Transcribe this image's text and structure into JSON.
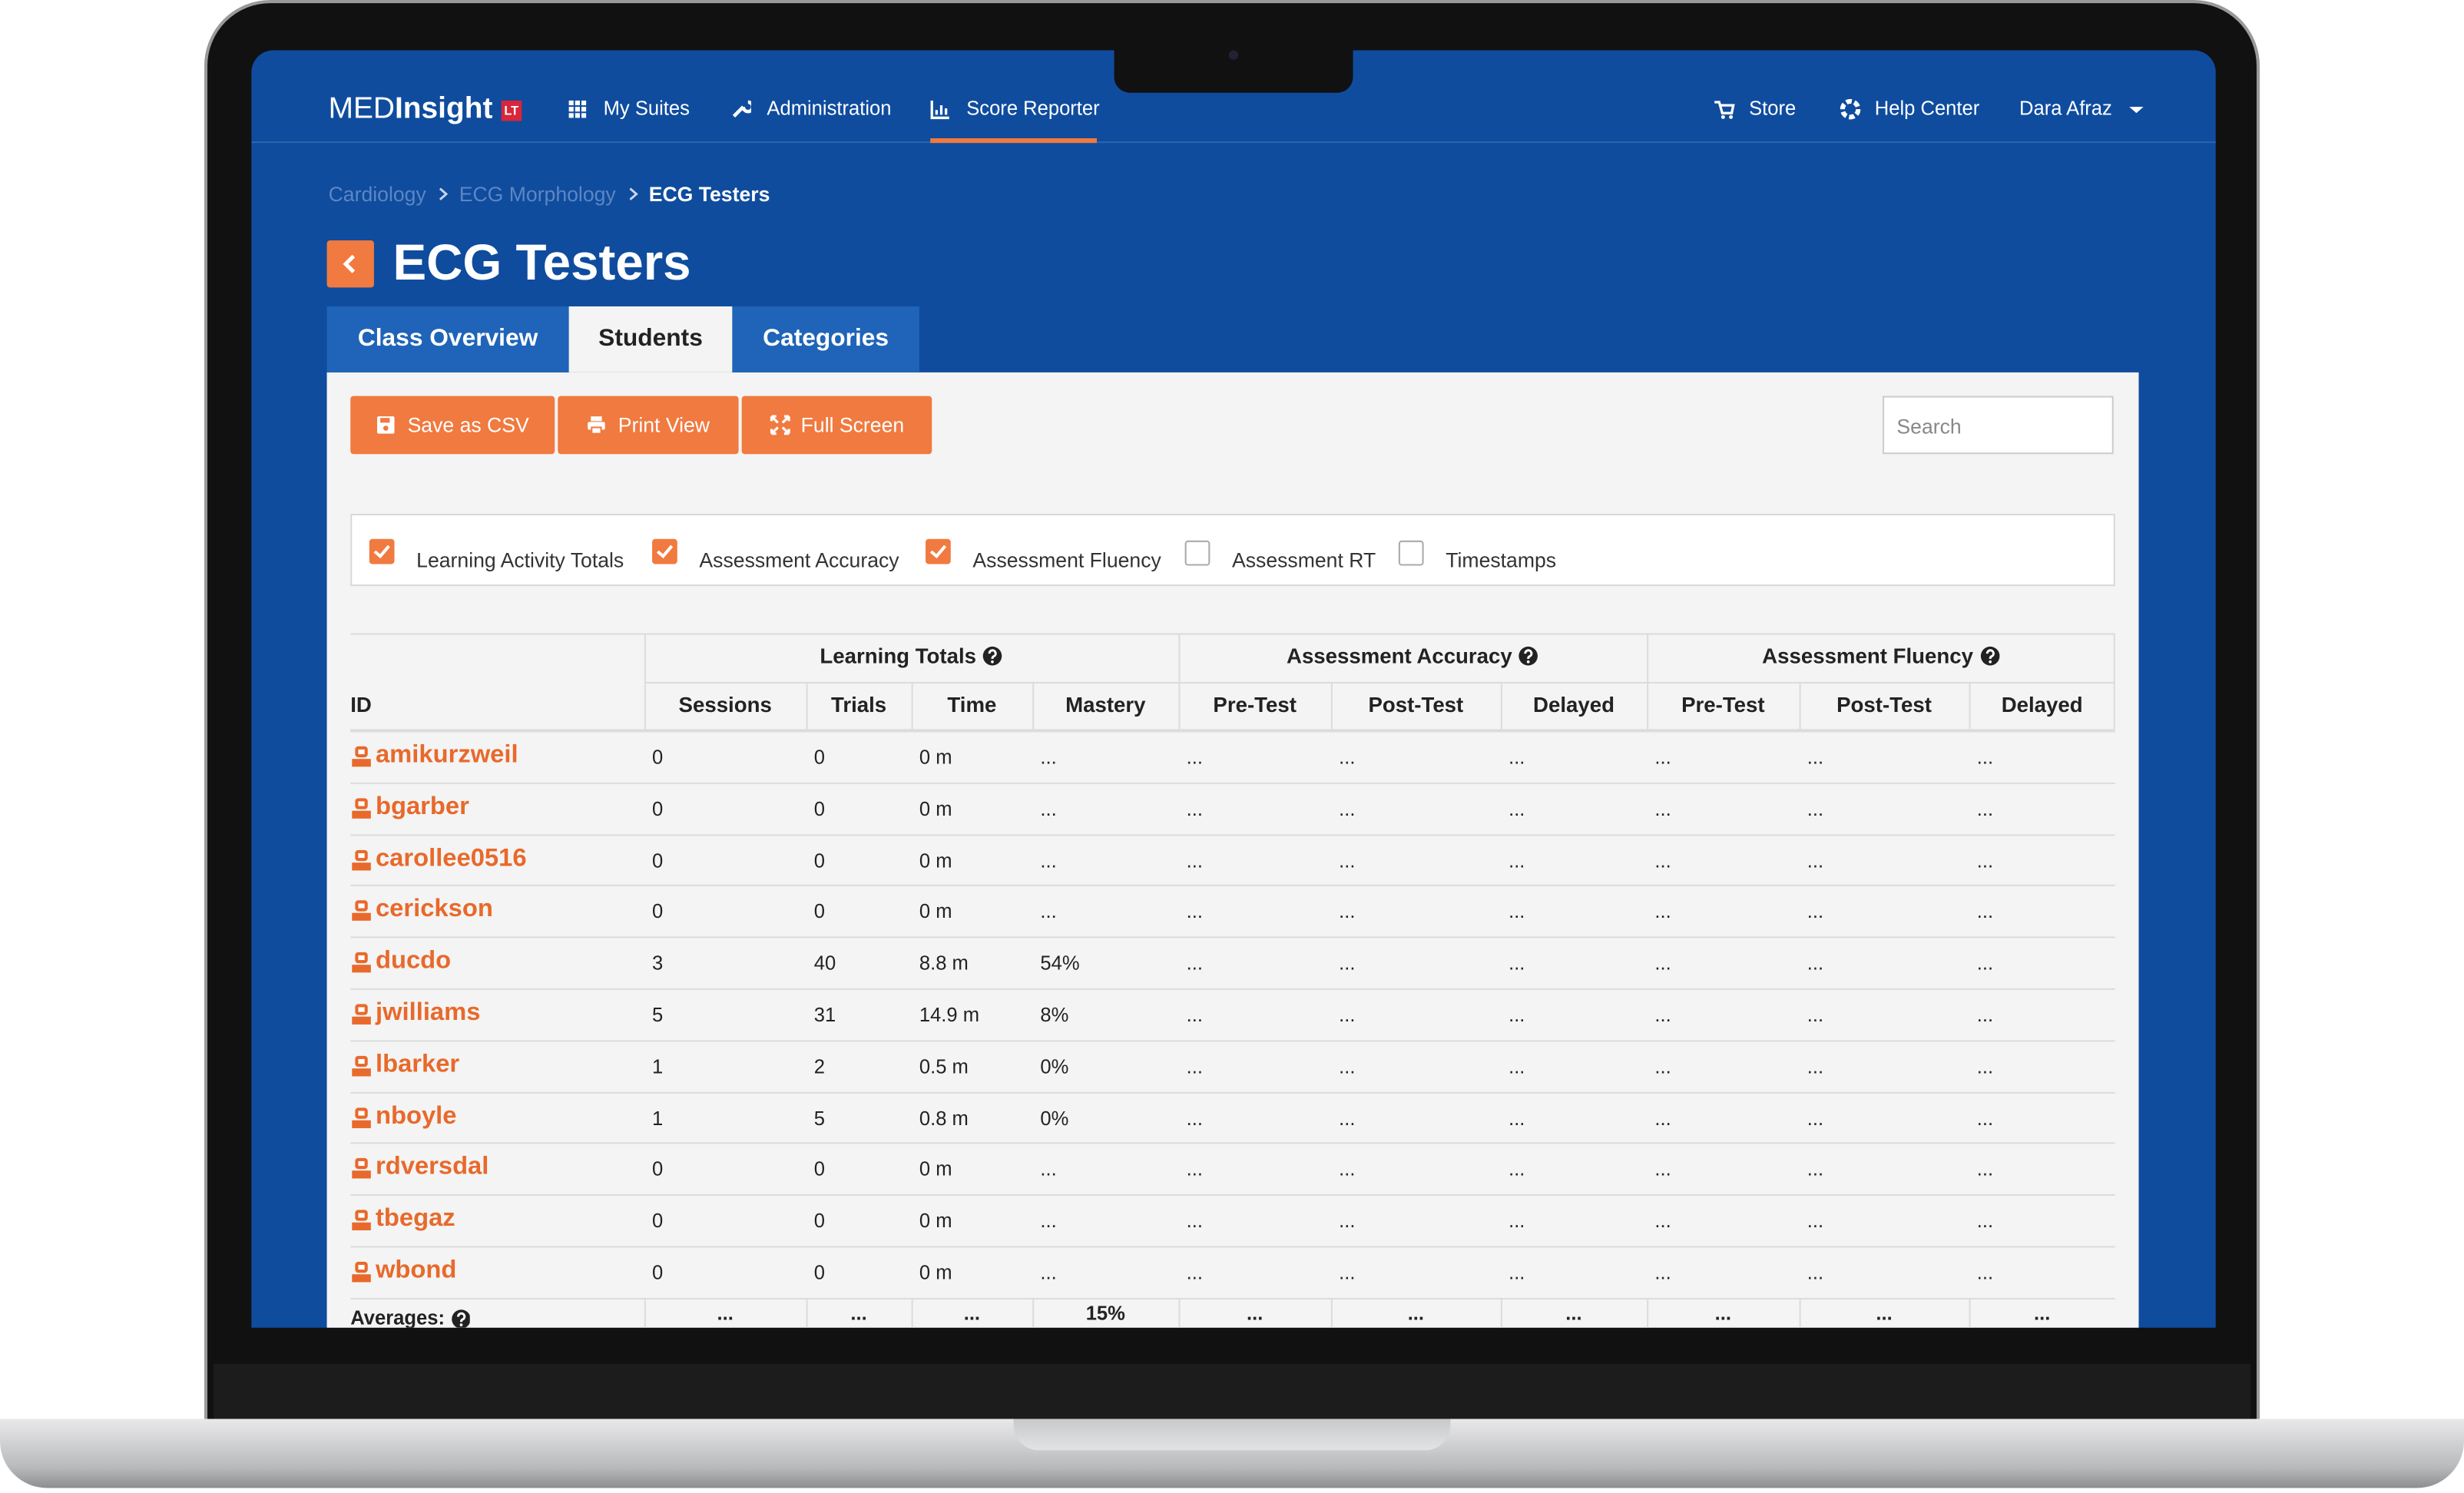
{
  "logo": {
    "med": "MED",
    "insight": "Insight",
    "badge": "LT"
  },
  "nav": {
    "items": [
      "My Suites",
      "Administration",
      "Score Reporter"
    ],
    "right": [
      "Store",
      "Help Center",
      "Dara Afraz"
    ]
  },
  "breadcrumb": [
    "Cardiology",
    "ECG Morphology",
    "ECG Testers"
  ],
  "title": "ECG Testers",
  "tabs": [
    "Class Overview",
    "Students",
    "Categories"
  ],
  "buttons": [
    "Save as CSV",
    "Print View",
    "Full Screen"
  ],
  "search_placeholder": "Search",
  "filters": [
    {
      "label": "Learning Activity Totals",
      "checked": true
    },
    {
      "label": "Assessment Accuracy",
      "checked": true
    },
    {
      "label": "Assessment Fluency",
      "checked": true
    },
    {
      "label": "Assessment RT",
      "checked": false
    },
    {
      "label": "Timestamps",
      "checked": false
    }
  ],
  "table": {
    "groups": [
      "Learning Totals",
      "Assessment Accuracy",
      "Assessment Fluency"
    ],
    "columns": [
      "ID",
      "Sessions",
      "Trials",
      "Time",
      "Mastery",
      "Pre-Test",
      "Post-Test",
      "Delayed",
      "Pre-Test",
      "Post-Test",
      "Delayed"
    ],
    "rows": [
      [
        "amikurzweil",
        0,
        0,
        "0 m",
        "...",
        "...",
        "...",
        "...",
        "...",
        "...",
        "..."
      ],
      [
        "bgarber",
        0,
        0,
        "0 m",
        "...",
        "...",
        "...",
        "...",
        "...",
        "...",
        "..."
      ],
      [
        "carollee0516",
        0,
        0,
        "0 m",
        "...",
        "...",
        "...",
        "...",
        "...",
        "...",
        "..."
      ],
      [
        "cerickson",
        0,
        0,
        "0 m",
        "...",
        "...",
        "...",
        "...",
        "...",
        "...",
        "..."
      ],
      [
        "ducdo",
        3,
        40,
        "8.8 m",
        "54%",
        "...",
        "...",
        "...",
        "...",
        "...",
        "..."
      ],
      [
        "jwilliams",
        5,
        31,
        "14.9 m",
        "8%",
        "...",
        "...",
        "...",
        "...",
        "...",
        "..."
      ],
      [
        "lbarker",
        1,
        2,
        "0.5 m",
        "0%",
        "...",
        "...",
        "...",
        "...",
        "...",
        "..."
      ],
      [
        "nboyle",
        1,
        5,
        "0.8 m",
        "0%",
        "...",
        "...",
        "...",
        "...",
        "...",
        "..."
      ],
      [
        "rdversdal",
        0,
        0,
        "0 m",
        "...",
        "...",
        "...",
        "...",
        "...",
        "...",
        "..."
      ],
      [
        "tbegaz",
        0,
        0,
        "0 m",
        "...",
        "...",
        "...",
        "...",
        "...",
        "...",
        "..."
      ],
      [
        "wbond",
        0,
        0,
        "0 m",
        "...",
        "...",
        "...",
        "...",
        "...",
        "...",
        "..."
      ]
    ],
    "averages": [
      "Averages:",
      "...",
      "...",
      "...",
      "15%",
      "...",
      "...",
      "...",
      "...",
      "...",
      "..."
    ]
  }
}
